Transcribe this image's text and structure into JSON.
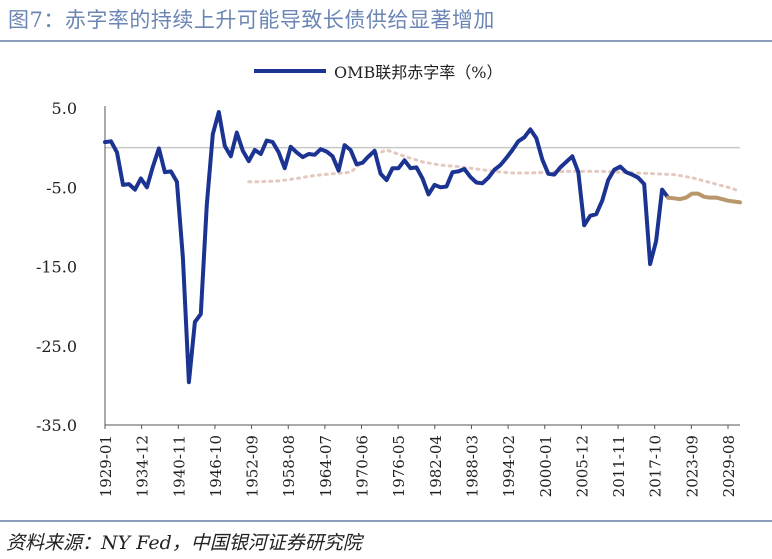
{
  "title": "图7：赤字率的持续上升可能导致长债供给显著增加",
  "source": "资料来源：NY Fed，中国银河证券研究院",
  "colors": {
    "actual": "#1b3391",
    "forecast": "#b8976a",
    "trend": "#e3c9bf",
    "zero_line": "#c8c8c8",
    "axis": "#555555"
  },
  "chart_data": {
    "type": "line",
    "title": "",
    "legend": {
      "entries": [
        "OMB联邦赤字率（%）"
      ],
      "placement": "top"
    },
    "xlabel": "",
    "ylabel": "",
    "xlim": [
      1929.0,
      2035.0
    ],
    "ylim": [
      -35,
      5
    ],
    "y_ticks": [
      5.0,
      -5.0,
      -15.0,
      -25.0,
      -35.0
    ],
    "y_tick_labels": [
      "5.0",
      "-5.0",
      "-15.0",
      "-25.0",
      "-35.0"
    ],
    "x_tick_labels": [
      "1929-01",
      "1934-12",
      "1940-11",
      "1946-10",
      "1952-09",
      "1958-08",
      "1964-07",
      "1970-06",
      "1976-05",
      "1982-04",
      "1988-03",
      "1994-02",
      "2000-01",
      "2005-12",
      "2011-11",
      "2017-10",
      "2023-09",
      "2029-08"
    ],
    "grid": false,
    "series": [
      {
        "name": "OMB联邦赤字率（%）",
        "style": "solid",
        "x": [
          1929,
          1930,
          1931,
          1932,
          1933,
          1934,
          1935,
          1936,
          1937,
          1938,
          1939,
          1940,
          1941,
          1942,
          1943,
          1944,
          1945,
          1946,
          1947,
          1948,
          1949,
          1950,
          1951,
          1952,
          1953,
          1954,
          1955,
          1956,
          1957,
          1958,
          1959,
          1960,
          1961,
          1962,
          1963,
          1964,
          1965,
          1966,
          1967,
          1968,
          1969,
          1970,
          1971,
          1972,
          1973,
          1974,
          1975,
          1976,
          1977,
          1978,
          1979,
          1980,
          1981,
          1982,
          1983,
          1984,
          1985,
          1986,
          1987,
          1988,
          1989,
          1990,
          1991,
          1992,
          1993,
          1994,
          1995,
          1996,
          1997,
          1998,
          1999,
          2000,
          2001,
          2002,
          2003,
          2004,
          2005,
          2006,
          2007,
          2008,
          2009,
          2010,
          2011,
          2012,
          2013,
          2014,
          2015,
          2016,
          2017,
          2018,
          2019,
          2020,
          2021,
          2022,
          2023
        ],
        "values": [
          0.7,
          0.8,
          -0.6,
          -4.7,
          -4.6,
          -5.3,
          -3.9,
          -5.0,
          -2.4,
          -0.1,
          -3.1,
          -3.0,
          -4.3,
          -13.9,
          -29.6,
          -22.0,
          -21.0,
          -7.2,
          1.7,
          4.5,
          0.2,
          -1.1,
          1.9,
          -0.4,
          -1.7,
          -0.3,
          -0.8,
          0.9,
          0.7,
          -0.6,
          -2.6,
          0.1,
          -0.6,
          -1.2,
          -0.8,
          -0.9,
          -0.2,
          -0.5,
          -1.1,
          -2.9,
          0.3,
          -0.3,
          -2.1,
          -1.9,
          -1.1,
          -0.4,
          -3.3,
          -4.1,
          -2.6,
          -2.6,
          -1.6,
          -2.6,
          -2.5,
          -3.9,
          -5.9,
          -4.7,
          -5.0,
          -4.9,
          -3.1,
          -3.0,
          -2.7,
          -3.7,
          -4.4,
          -4.5,
          -3.8,
          -2.8,
          -2.2,
          -1.3,
          -0.3,
          0.8,
          1.3,
          2.3,
          1.2,
          -1.5,
          -3.3,
          -3.4,
          -2.5,
          -1.8,
          -1.1,
          -3.1,
          -9.8,
          -8.6,
          -8.4,
          -6.7,
          -4.1,
          -2.8,
          -2.4,
          -3.1,
          -3.4,
          -3.8,
          -4.6,
          -14.7,
          -11.8,
          -5.3,
          -6.3
        ]
      },
      {
        "name": "",
        "style": "solid",
        "x": [
          2023,
          2024,
          2025,
          2026,
          2027,
          2028,
          2029,
          2030,
          2031,
          2032,
          2033,
          2034,
          2035
        ],
        "values": [
          -6.3,
          -6.4,
          -6.5,
          -6.3,
          -5.8,
          -5.8,
          -6.2,
          -6.3,
          -6.3,
          -6.5,
          -6.7,
          -6.8,
          -6.9
        ]
      },
      {
        "name": "",
        "style": "dotted",
        "x": [
          1953,
          1955,
          1958,
          1961,
          1964,
          1967,
          1970,
          1973,
          1976,
          1979,
          1982,
          1985,
          1988,
          1991,
          1994,
          1997,
          2000,
          2003,
          2006,
          2009,
          2012,
          2015,
          2018,
          2021,
          2024,
          2027,
          2030,
          2033,
          2035
        ],
        "values": [
          -4.3,
          -4.3,
          -4.2,
          -3.9,
          -3.5,
          -3.3,
          -3.1,
          -1.2,
          -0.3,
          -1.1,
          -1.8,
          -2.2,
          -2.4,
          -2.7,
          -3.0,
          -3.2,
          -3.2,
          -3.1,
          -3.0,
          -3.0,
          -3.0,
          -3.1,
          -3.2,
          -3.3,
          -3.4,
          -3.8,
          -4.4,
          -5.0,
          -5.5
        ]
      }
    ]
  }
}
